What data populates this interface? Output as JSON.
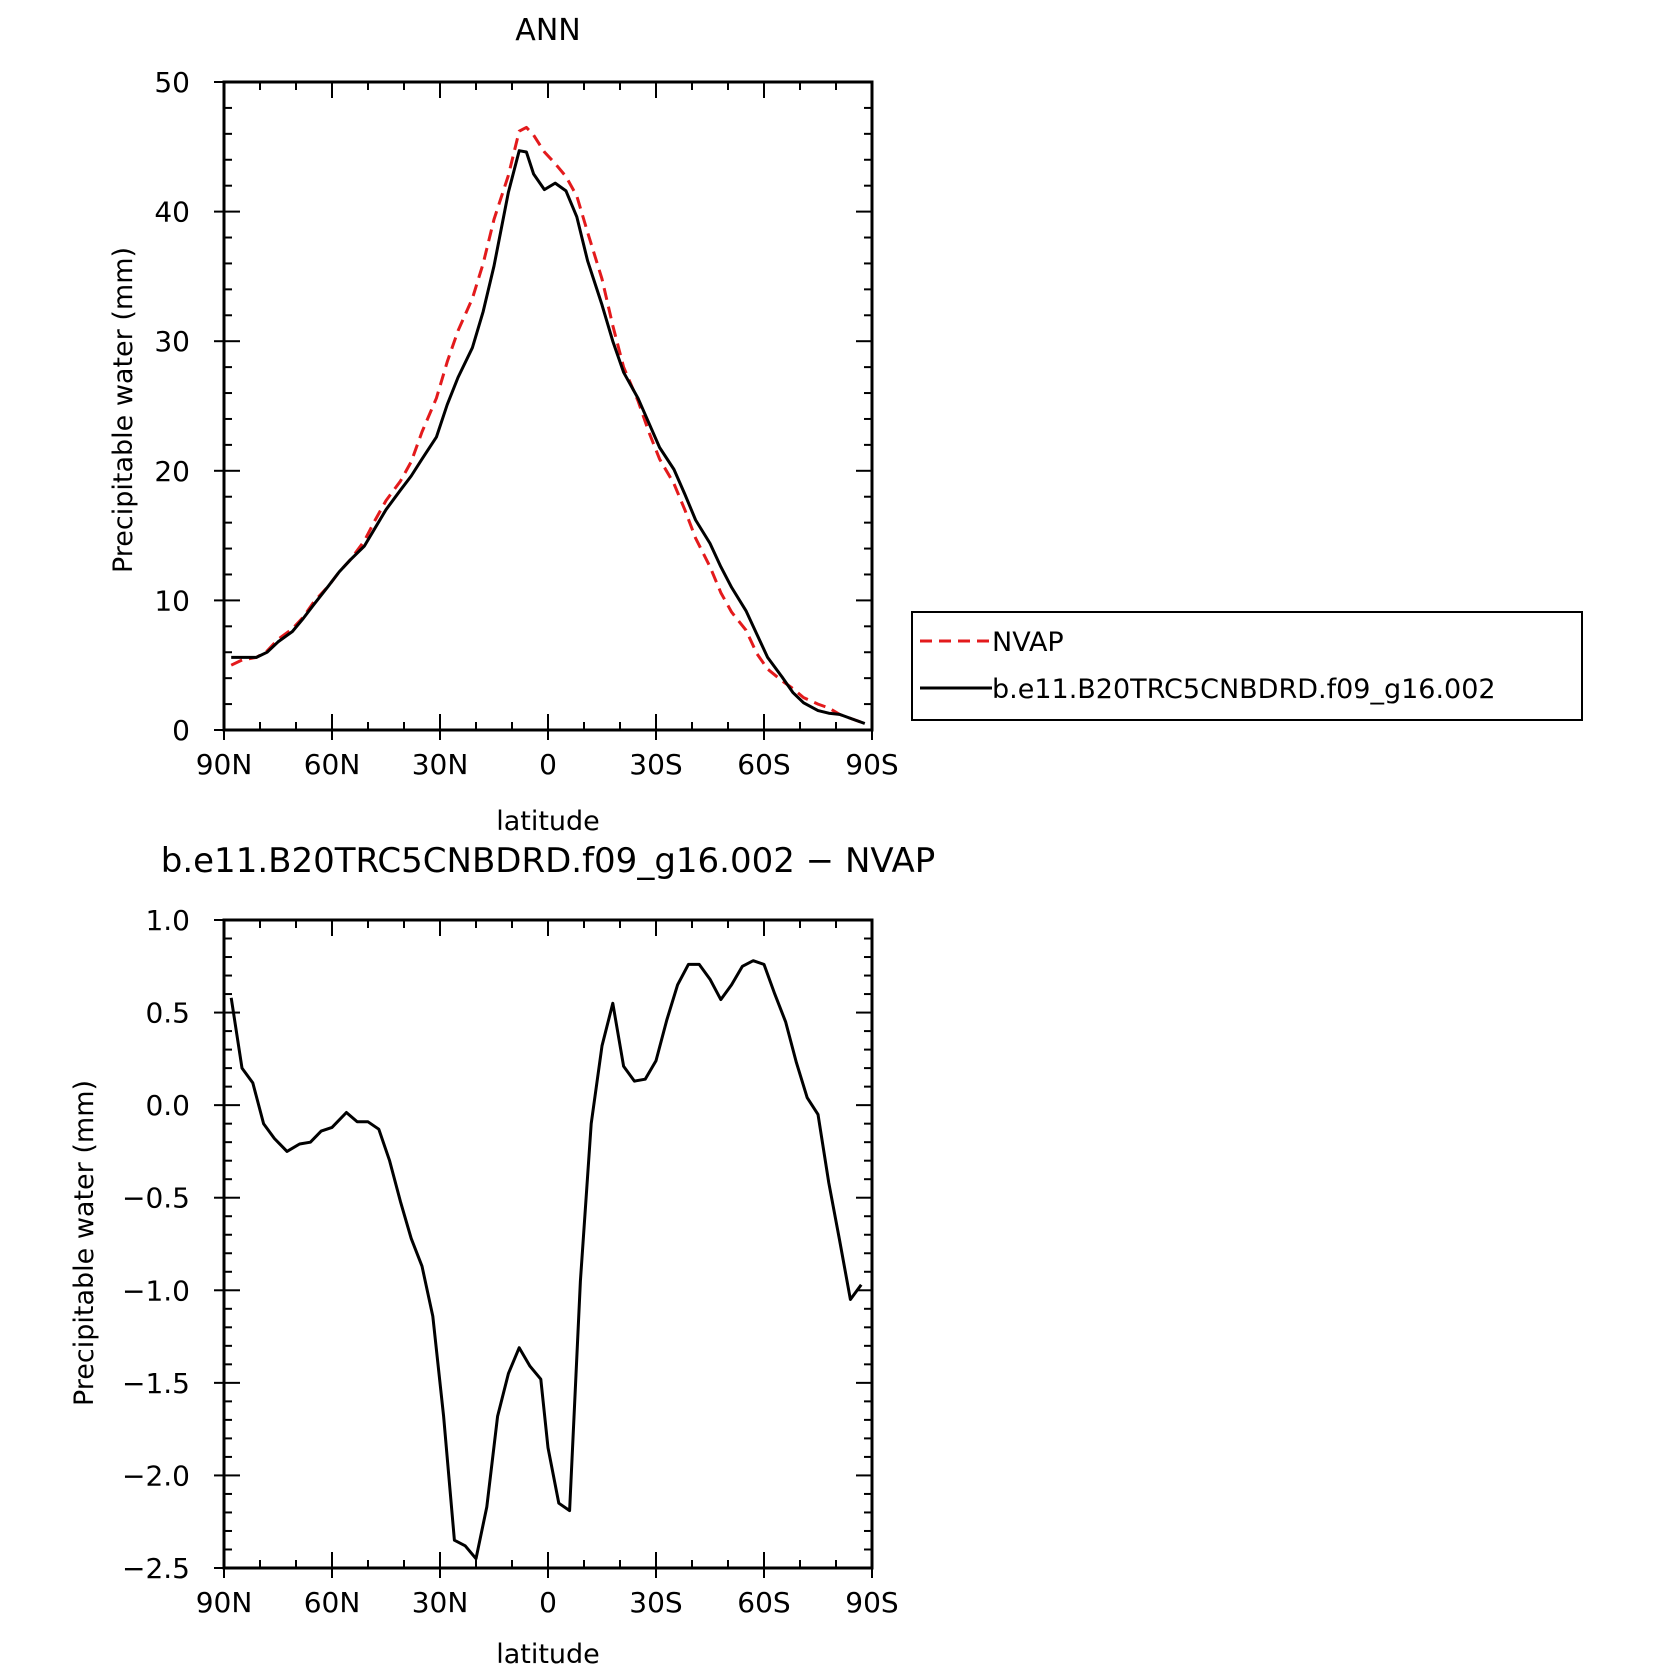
{
  "legend": {
    "entries": [
      {
        "label": "NVAP",
        "color": "#e31a1c",
        "dash": true
      },
      {
        "label": "b.e11.B20TRC5CNBDRD.f09_g16.002",
        "color": "#000000",
        "dash": false
      }
    ]
  },
  "chart_data": [
    {
      "type": "line",
      "title": "ANN",
      "xlabel": "latitude",
      "ylabel": "Precipitable water (mm)",
      "xlim": [
        90,
        -90
      ],
      "ylim": [
        0,
        50
      ],
      "xticks": [
        90,
        60,
        30,
        0,
        -30,
        -60,
        -90
      ],
      "xtick_labels": [
        "90N",
        "60N",
        "30N",
        "0",
        "30S",
        "60S",
        "90S"
      ],
      "yticks": [
        0,
        10,
        20,
        30,
        40,
        50
      ],
      "ytick_labels": [
        "0",
        "10",
        "20",
        "30",
        "40",
        "50"
      ],
      "legend_position": "right",
      "series": [
        {
          "name": "NVAP",
          "color": "#e31a1c",
          "dash": true,
          "x": [
            88,
            85,
            81,
            78,
            75,
            71,
            68,
            65,
            61,
            58,
            55,
            51,
            48,
            45,
            41,
            38,
            35,
            31,
            28,
            25,
            21,
            18,
            15,
            11,
            8,
            6,
            4,
            1,
            -2,
            -5,
            -8,
            -11,
            -15,
            -18,
            -21,
            -25,
            -28,
            -31,
            -35,
            -38,
            -41,
            -45,
            -48,
            -51,
            -55,
            -58,
            -61,
            -65,
            -68,
            -71,
            -75,
            -78,
            -81,
            -85,
            -88
          ],
          "values": [
            5.0,
            5.4,
            5.6,
            6.1,
            7.0,
            7.8,
            8.7,
            9.9,
            11.1,
            12.2,
            13.1,
            14.6,
            16.2,
            17.7,
            19.2,
            20.7,
            23.0,
            25.6,
            28.4,
            30.8,
            33.3,
            36.0,
            39.4,
            42.8,
            46.2,
            46.5,
            45.9,
            44.6,
            43.7,
            42.7,
            41.2,
            38.4,
            34.8,
            31.2,
            28.0,
            25.4,
            23.0,
            20.9,
            19.0,
            17.0,
            14.8,
            12.6,
            10.6,
            9.1,
            7.7,
            5.9,
            4.7,
            3.8,
            3.2,
            2.5,
            2.0,
            1.7,
            1.2,
            0.8,
            0.5
          ]
        },
        {
          "name": "b.e11.B20TRC5CNBDRD.f09_g16.002",
          "color": "#000000",
          "dash": false,
          "x": [
            88,
            85,
            81,
            78,
            75,
            71,
            68,
            65,
            61,
            58,
            55,
            51,
            48,
            45,
            41,
            38,
            35,
            31,
            28,
            25,
            21,
            18,
            15,
            11,
            8,
            6,
            4,
            1,
            -2,
            -5,
            -8,
            -11,
            -15,
            -18,
            -21,
            -25,
            -28,
            -31,
            -35,
            -38,
            -41,
            -45,
            -48,
            -51,
            -55,
            -58,
            -61,
            -65,
            -68,
            -71,
            -75,
            -78,
            -81,
            -85,
            -88
          ],
          "values": [
            5.6,
            5.6,
            5.6,
            6.0,
            6.8,
            7.6,
            8.6,
            9.7,
            11.1,
            12.2,
            13.1,
            14.2,
            15.6,
            17.0,
            18.5,
            19.6,
            20.9,
            22.6,
            25.1,
            27.2,
            29.5,
            32.3,
            35.8,
            41.5,
            44.7,
            44.6,
            42.9,
            41.7,
            42.2,
            41.6,
            39.6,
            36.2,
            32.8,
            30.0,
            27.6,
            25.6,
            23.7,
            21.8,
            20.1,
            18.2,
            16.2,
            14.4,
            12.6,
            11.0,
            9.2,
            7.4,
            5.6,
            4.1,
            2.9,
            2.1,
            1.5,
            1.3,
            1.2,
            0.8,
            0.5
          ]
        }
      ]
    },
    {
      "type": "line",
      "title": "b.e11.B20TRC5CNBDRD.f09_g16.002 − NVAP",
      "xlabel": "latitude",
      "ylabel": "Precipitable water (mm)",
      "xlim": [
        90,
        -90
      ],
      "ylim": [
        -2.5,
        1.0
      ],
      "xticks": [
        90,
        60,
        30,
        0,
        -30,
        -60,
        -90
      ],
      "xtick_labels": [
        "90N",
        "60N",
        "30N",
        "0",
        "30S",
        "60S",
        "90S"
      ],
      "yticks": [
        1.0,
        0.5,
        0.0,
        -0.5,
        -1.0,
        -1.5,
        -2.0,
        -2.5
      ],
      "ytick_labels": [
        "1.0",
        "0.5",
        "0.0",
        "−0.5",
        "−1.0",
        "−1.5",
        "−2.0",
        "−2.5"
      ],
      "series": [
        {
          "color": "#000000",
          "dash": false,
          "x": [
            88,
            85,
            82,
            79,
            76,
            72.5,
            69,
            66,
            63,
            60,
            56,
            53,
            50,
            47,
            44,
            41,
            38,
            35,
            32,
            29,
            26,
            23,
            20,
            17,
            14,
            11,
            8,
            5,
            2,
            0,
            -3,
            -6,
            -9,
            -12,
            -15,
            -18,
            -21,
            -24,
            -27,
            -30,
            -33,
            -36,
            -39,
            -42,
            -45,
            -48,
            -51,
            -54,
            -57,
            -60,
            -63,
            -66,
            -69,
            -72,
            -75,
            -78,
            -81,
            -84,
            -87
          ],
          "values": [
            0.58,
            0.2,
            0.12,
            -0.1,
            -0.18,
            -0.25,
            -0.21,
            -0.2,
            -0.14,
            -0.12,
            -0.04,
            -0.09,
            -0.09,
            -0.13,
            -0.3,
            -0.52,
            -0.72,
            -0.87,
            -1.14,
            -1.68,
            -2.35,
            -2.38,
            -2.45,
            -2.17,
            -1.68,
            -1.45,
            -1.31,
            -1.41,
            -1.48,
            -1.85,
            -2.15,
            -2.19,
            -0.95,
            -0.1,
            0.32,
            0.55,
            0.21,
            0.13,
            0.14,
            0.24,
            0.46,
            0.65,
            0.76,
            0.76,
            0.68,
            0.57,
            0.65,
            0.75,
            0.78,
            0.76,
            0.6,
            0.45,
            0.23,
            0.04,
            -0.05,
            -0.42,
            -0.73,
            -1.05,
            -0.97
          ]
        }
      ]
    }
  ]
}
